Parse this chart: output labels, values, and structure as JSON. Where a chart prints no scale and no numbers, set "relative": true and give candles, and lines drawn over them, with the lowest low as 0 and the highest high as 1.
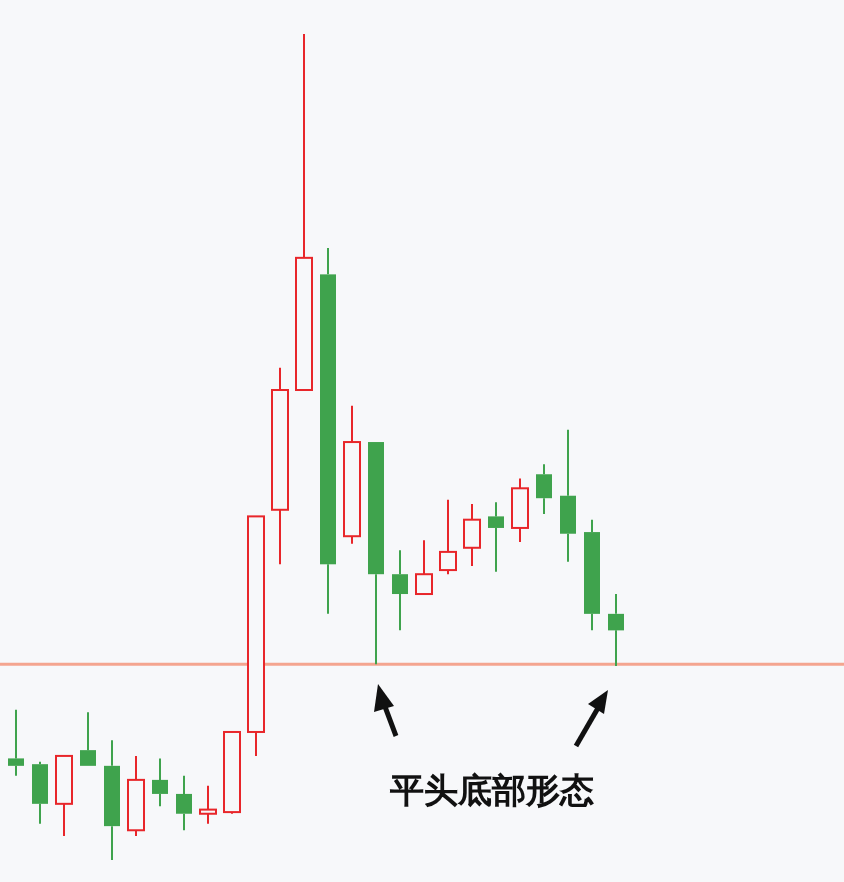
{
  "chart_data": {
    "type": "candlestick",
    "relative": true,
    "categories": [
      null,
      null,
      null,
      null,
      null,
      null,
      null,
      null,
      null,
      null,
      null,
      null,
      null,
      null,
      null,
      null,
      null,
      null,
      null,
      null,
      null,
      null,
      null,
      null,
      null,
      null
    ],
    "ohlc": [
      [
        0.123,
        0.182,
        0.102,
        0.114
      ],
      [
        0.116,
        0.119,
        0.044,
        0.068
      ],
      [
        0.068,
        0.126,
        0.029,
        0.126
      ],
      [
        0.133,
        0.179,
        0.114,
        0.114
      ],
      [
        0.114,
        0.145,
        0,
        0.041
      ],
      [
        0.036,
        0.126,
        0.029,
        0.097
      ],
      [
        0.097,
        0.123,
        0.065,
        0.08
      ],
      [
        0.08,
        0.102,
        0.036,
        0.056
      ],
      [
        0.056,
        0.09,
        0.044,
        0.061
      ],
      [
        0.058,
        0.155,
        0.056,
        0.155
      ],
      [
        0.155,
        0.416,
        0.126,
        0.416
      ],
      [
        0.424,
        0.596,
        0.358,
        0.569
      ],
      [
        0.569,
        1,
        0.569,
        0.729
      ],
      [
        0.709,
        0.741,
        0.298,
        0.358
      ],
      [
        0.392,
        0.55,
        0.383,
        0.506
      ],
      [
        0.506,
        0.506,
        0.237,
        0.346
      ],
      [
        0.346,
        0.375,
        0.278,
        0.322
      ],
      [
        0.322,
        0.387,
        0.322,
        0.346
      ],
      [
        0.351,
        0.436,
        0.346,
        0.373
      ],
      [
        0.378,
        0.431,
        0.356,
        0.412
      ],
      [
        0.416,
        0.433,
        0.349,
        0.402
      ],
      [
        0.402,
        0.462,
        0.385,
        0.45
      ],
      [
        0.467,
        0.479,
        0.419,
        0.438
      ],
      [
        0.441,
        0.521,
        0.361,
        0.395
      ],
      [
        0.397,
        0.412,
        0.278,
        0.298
      ],
      [
        0.298,
        0.322,
        0.235,
        0.278
      ]
    ],
    "colors": [
      "#3fa34d",
      "#3fa34d",
      "#e8262a",
      "#3fa34d",
      "#3fa34d",
      "#e8262a",
      "#3fa34d",
      "#3fa34d",
      "#e8262a",
      "#e8262a",
      "#e8262a",
      "#e8262a",
      "#e8262a",
      "#3fa34d",
      "#e8262a",
      "#3fa34d",
      "#3fa34d",
      "#e8262a",
      "#e8262a",
      "#e8262a",
      "#3fa34d",
      "#e8262a",
      "#3fa34d",
      "#3fa34d",
      "#3fa34d",
      "#3fa34d"
    ],
    "ref_lines": [
      {
        "axis": "y",
        "value": 0.237,
        "color": "#f4a58f"
      }
    ],
    "annotations": [
      "平头底部形态"
    ]
  }
}
